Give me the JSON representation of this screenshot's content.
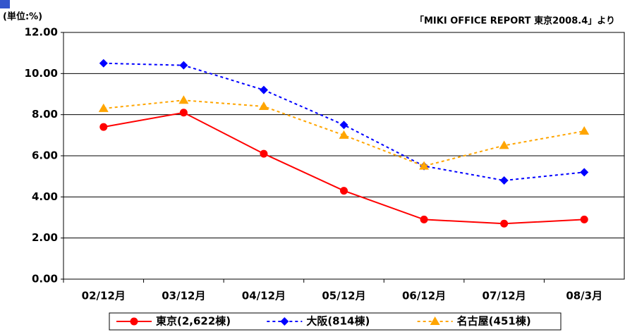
{
  "chart_data": {
    "type": "line",
    "unit_label": "(単位:%)",
    "source_note": "「MIKI OFFICE REPORT 東京2008.4」より",
    "categories": [
      "02/12月",
      "03/12月",
      "04/12月",
      "05/12月",
      "06/12月",
      "07/12月",
      "08/3月"
    ],
    "series": [
      {
        "name": "東京(2,622棟)",
        "color": "#ff0000",
        "line_style": "solid",
        "marker": "circle",
        "values": [
          7.4,
          8.1,
          6.1,
          4.3,
          2.9,
          2.7,
          2.9
        ]
      },
      {
        "name": "大阪(814棟)",
        "color": "#0000ff",
        "line_style": "dashed",
        "marker": "diamond",
        "values": [
          10.5,
          10.4,
          9.2,
          7.5,
          5.5,
          4.8,
          5.2
        ]
      },
      {
        "name": "名古屋(451棟)",
        "color": "#ffa500",
        "line_style": "dashed",
        "marker": "triangle",
        "values": [
          8.3,
          8.7,
          8.4,
          7.0,
          5.5,
          6.5,
          7.2
        ]
      }
    ],
    "ylim": [
      0,
      12
    ],
    "yticks": [
      {
        "value": 0,
        "label": "0.00"
      },
      {
        "value": 2,
        "label": "2.00"
      },
      {
        "value": 4,
        "label": "4.00"
      },
      {
        "value": 6,
        "label": "6.00"
      },
      {
        "value": 8,
        "label": "8.00"
      },
      {
        "value": 10,
        "label": "10.00"
      },
      {
        "value": 12,
        "label": "12.00"
      }
    ],
    "grid": true,
    "legend": "bottom"
  }
}
